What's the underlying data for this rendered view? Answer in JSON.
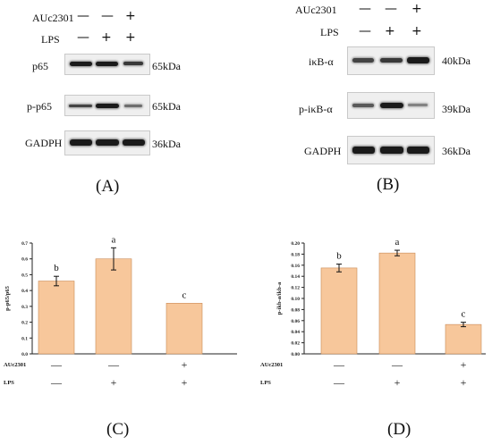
{
  "panelA": {
    "label": "(A)",
    "treatments": [
      {
        "name": "AUc2301",
        "marks": [
          "—",
          "—",
          "+"
        ]
      },
      {
        "name": "LPS",
        "marks": [
          "—",
          "+",
          "+"
        ]
      }
    ],
    "blots": [
      {
        "name": "p65",
        "size": "65kDa",
        "bands": [
          1.0,
          1.0,
          0.85
        ]
      },
      {
        "name": "p-p65",
        "size": "65kDa",
        "bands": [
          0.75,
          1.0,
          0.55
        ]
      },
      {
        "name": "GADPH",
        "size": "36kDa",
        "bands": [
          1.0,
          1.0,
          1.0
        ]
      }
    ]
  },
  "panelB": {
    "label": "(B)",
    "treatments": [
      {
        "name": "AUc2301",
        "marks": [
          "—",
          "—",
          "+"
        ]
      },
      {
        "name": "LPS",
        "marks": [
          "—",
          "+",
          "+"
        ]
      }
    ],
    "blots": [
      {
        "name": "iκB-α",
        "size": "40kDa",
        "bands": [
          0.8,
          0.85,
          1.0
        ]
      },
      {
        "name": "p-iκB-α",
        "size": "39kDa",
        "bands": [
          0.7,
          1.0,
          0.5
        ]
      },
      {
        "name": "GADPH",
        "size": "36kDa",
        "bands": [
          1.0,
          1.0,
          1.0
        ]
      }
    ]
  },
  "panelC": {
    "label": "(C)"
  },
  "panelD": {
    "label": "(D)"
  },
  "chart_data": [
    {
      "type": "bar",
      "panel": "C",
      "ylabel": "p-p65/p65",
      "ylim": [
        0,
        0.7
      ],
      "yticks": [
        "0.0",
        "0.1",
        "0.2",
        "0.3",
        "0.4",
        "0.5",
        "0.6",
        "0.7"
      ],
      "values": [
        0.46,
        0.6,
        0.32
      ],
      "errors": [
        0.03,
        0.07,
        0.0
      ],
      "significance": [
        "b",
        "a",
        "c"
      ],
      "bar_color": "#f7c79b",
      "treatment_rows": [
        {
          "name": "AUc2301",
          "marks": [
            "—",
            "—",
            "+"
          ]
        },
        {
          "name": "LPS",
          "marks": [
            "—",
            "+",
            "+"
          ]
        }
      ]
    },
    {
      "type": "bar",
      "panel": "D",
      "ylabel": "p-ikb-a/ikb-a",
      "ylim": [
        0,
        0.2
      ],
      "yticks": [
        "0.00",
        "0.02",
        "0.04",
        "0.06",
        "0.08",
        "0.10",
        "0.12",
        "0.14",
        "0.16",
        "0.18",
        "0.20"
      ],
      "values": [
        0.155,
        0.182,
        0.053
      ],
      "errors": [
        0.007,
        0.005,
        0.004
      ],
      "significance": [
        "b",
        "a",
        "c"
      ],
      "bar_color": "#f7c79b",
      "treatment_rows": [
        {
          "name": "AUc2301",
          "marks": [
            "—",
            "—",
            "+"
          ]
        },
        {
          "name": "LPS",
          "marks": [
            "—",
            "+",
            "+"
          ]
        }
      ]
    }
  ]
}
